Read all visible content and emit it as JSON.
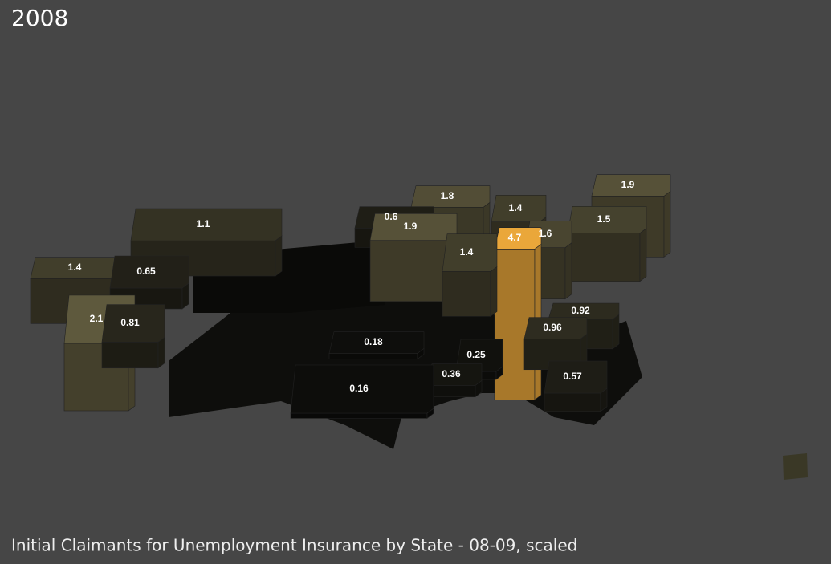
{
  "chart_data": {
    "type": "map3d",
    "title": "2008",
    "subtitle": "Initial Claimants for Unemployment Insurance by State - 08-09, scaled",
    "values": [
      1.1,
      1.4,
      0.65,
      2.1,
      0.81,
      0.6,
      1.8,
      1.9,
      1.4,
      1.4,
      4.7,
      1.6,
      1.9,
      1.5,
      0.92,
      0.96,
      0.18,
      0.25,
      0.36,
      0.16,
      0.57
    ],
    "colors": [
      "#0d0d0b",
      "#6c6646",
      "#eaa73a"
    ]
  }
}
